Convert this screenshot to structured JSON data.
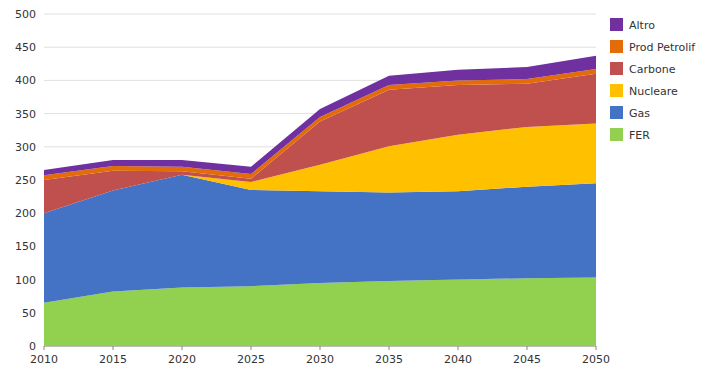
{
  "chart_data": {
    "type": "area",
    "stacked": true,
    "x": [
      2010,
      2015,
      2020,
      2025,
      2030,
      2035,
      2040,
      2045,
      2050
    ],
    "series": [
      {
        "name": "FER",
        "color": "#92d050",
        "values": [
          65,
          82,
          88,
          90,
          95,
          98,
          100,
          102,
          103
        ]
      },
      {
        "name": "Gas",
        "color": "#4472c4",
        "values": [
          135,
          152,
          170,
          145,
          138,
          133,
          133,
          138,
          142
        ]
      },
      {
        "name": "Nucleare",
        "color": "#ffc000",
        "values": [
          0,
          0,
          0,
          12,
          40,
          70,
          85,
          90,
          90
        ]
      },
      {
        "name": "Carbone",
        "color": "#c0504d",
        "values": [
          50,
          30,
          5,
          5,
          65,
          85,
          75,
          65,
          75
        ]
      },
      {
        "name": "Prod Petrolif",
        "color": "#e36c09",
        "values": [
          7,
          7,
          7,
          7,
          7,
          7,
          7,
          7,
          7
        ]
      },
      {
        "name": "Altro",
        "color": "#7030a0",
        "values": [
          8,
          9,
          10,
          11,
          12,
          14,
          16,
          18,
          20
        ]
      }
    ],
    "xlim": [
      2010,
      2050
    ],
    "xticks": [
      2010,
      2015,
      2020,
      2025,
      2030,
      2035,
      2040,
      2045,
      2050
    ],
    "ylim": [
      0,
      500
    ],
    "yticks": [
      0,
      50,
      100,
      150,
      200,
      250,
      300,
      350,
      400,
      450,
      500
    ],
    "grid": "y",
    "legend": "right"
  }
}
